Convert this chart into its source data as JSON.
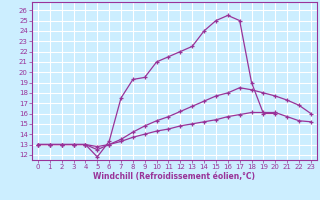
{
  "xlabel": "Windchill (Refroidissement éolien,°C)",
  "x_ticks": [
    0,
    1,
    2,
    3,
    4,
    5,
    6,
    7,
    8,
    9,
    10,
    11,
    12,
    13,
    14,
    15,
    16,
    17,
    18,
    19,
    20,
    21,
    22,
    23
  ],
  "y_ticks": [
    12,
    13,
    14,
    15,
    16,
    17,
    18,
    19,
    20,
    21,
    22,
    23,
    24,
    25,
    26
  ],
  "ylim": [
    11.5,
    26.8
  ],
  "xlim": [
    -0.5,
    23.5
  ],
  "bg_color": "#cceeff",
  "grid_color": "#ffffff",
  "line_color": "#993399",
  "line1_x": [
    0,
    1,
    2,
    3,
    4,
    5,
    6,
    7,
    8,
    9,
    10,
    11,
    12,
    13,
    14,
    15,
    16,
    17,
    18,
    19,
    20
  ],
  "line1_y": [
    13,
    13,
    13,
    13,
    13,
    11.8,
    13.3,
    17.5,
    19.3,
    19.5,
    21,
    21.5,
    22,
    22.5,
    24,
    25,
    25.5,
    25,
    19,
    16,
    16
  ],
  "line2_x": [
    0,
    1,
    2,
    3,
    4,
    5,
    6,
    7,
    8,
    9,
    10,
    11,
    12,
    13,
    14,
    15,
    16,
    17,
    18,
    19,
    20,
    21,
    22,
    23
  ],
  "line2_y": [
    13,
    13,
    13,
    13,
    13,
    12.8,
    13,
    13.5,
    14.2,
    14.8,
    15.3,
    15.7,
    16.2,
    16.7,
    17.2,
    17.7,
    18.0,
    18.5,
    18.3,
    18.0,
    17.7,
    17.3,
    16.8,
    16.0
  ],
  "line3_x": [
    0,
    1,
    2,
    3,
    4,
    5,
    6,
    7,
    8,
    9,
    10,
    11,
    12,
    13,
    14,
    15,
    16,
    17,
    18,
    19,
    20,
    21,
    22,
    23
  ],
  "line3_y": [
    13,
    13,
    13,
    13,
    13,
    12.5,
    13,
    13.3,
    13.7,
    14.0,
    14.3,
    14.5,
    14.8,
    15.0,
    15.2,
    15.4,
    15.7,
    15.9,
    16.1,
    16.1,
    16.1,
    15.7,
    15.3,
    15.2
  ],
  "xlabel_fontsize": 5.5,
  "tick_fontsize": 5.0,
  "linewidth": 0.9,
  "markersize": 3.0
}
